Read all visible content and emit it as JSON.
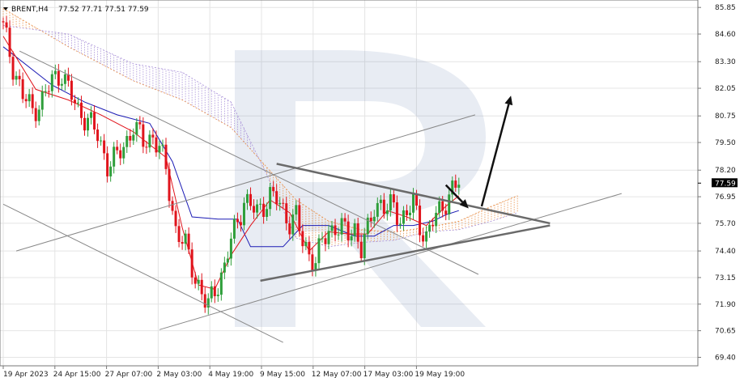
{
  "header": {
    "symbol": "BRENT,H4",
    "ohlc": "77.52 77.71 77.51 77.59",
    "dropdown_icon": "triangle-down-icon"
  },
  "price_tag": {
    "value": "77.59",
    "price": 77.59
  },
  "watermark": {
    "letter": "R",
    "color": "#6e86b4"
  },
  "colors": {
    "bull_candle": "#2e9e3a",
    "bear_candle": "#e0141c",
    "tenkan": "#e0141c",
    "kijun": "#1a1ab4",
    "chikou": "#2e9e3a",
    "cloud_a": "#e8904a",
    "cloud_b": "#a890d8",
    "trendline": "#888888",
    "triangle": "#6a6a6a",
    "forecast_arrow": "#111111"
  },
  "chart_data": {
    "type": "candlestick",
    "symbol": "BRENT",
    "timeframe": "H4",
    "ylim": [
      69.0,
      86.2
    ],
    "y_ticks": [
      "85.85",
      "84.60",
      "83.30",
      "82.05",
      "80.75",
      "79.50",
      "78.20",
      "76.95",
      "75.70",
      "74.40",
      "73.15",
      "71.90",
      "70.65",
      "69.40"
    ],
    "x_ticks": [
      "19 Apr 2023",
      "24 Apr 15:00",
      "27 Apr 07:00",
      "2 May 03:00",
      "4 May 19:00",
      "9 May 15:00",
      "12 May 07:00",
      "17 May 03:00",
      "19 May 19:00"
    ],
    "close_path": [
      [
        0,
        84.9
      ],
      [
        3,
        83.1
      ],
      [
        6,
        81.7
      ],
      [
        9,
        81.0
      ],
      [
        12,
        81.5
      ],
      [
        15,
        82.4
      ],
      [
        18,
        82.8
      ],
      [
        20,
        82.0
      ],
      [
        23,
        81.0
      ],
      [
        26,
        80.6
      ],
      [
        29,
        79.8
      ],
      [
        32,
        78.5
      ],
      [
        35,
        78.8
      ],
      [
        38,
        79.6
      ],
      [
        40,
        80.3
      ],
      [
        43,
        79.5
      ],
      [
        46,
        79.8
      ],
      [
        48,
        79.2
      ],
      [
        50,
        78.2
      ],
      [
        53,
        75.4
      ],
      [
        56,
        74.6
      ],
      [
        59,
        73.2
      ],
      [
        62,
        72.0
      ],
      [
        63,
        71.8
      ],
      [
        65,
        72.6
      ],
      [
        68,
        73.6
      ],
      [
        70,
        74.9
      ],
      [
        72,
        75.8
      ],
      [
        74,
        76.8
      ],
      [
        76,
        76.5
      ],
      [
        78,
        76.2
      ],
      [
        80,
        76.6
      ],
      [
        82,
        77.0
      ],
      [
        84,
        76.8
      ],
      [
        86,
        76.3
      ],
      [
        88,
        75.8
      ],
      [
        90,
        76.0
      ],
      [
        92,
        74.8
      ],
      [
        94,
        74.3
      ],
      [
        96,
        73.9
      ],
      [
        98,
        74.8
      ],
      [
        100,
        75.3
      ],
      [
        102,
        75.6
      ],
      [
        104,
        75.4
      ],
      [
        106,
        75.2
      ],
      [
        108,
        75.5
      ],
      [
        110,
        74.5
      ],
      [
        112,
        75.3
      ],
      [
        114,
        76.5
      ],
      [
        116,
        76.7
      ],
      [
        118,
        76.3
      ],
      [
        120,
        76.5
      ],
      [
        122,
        75.9
      ],
      [
        124,
        76.2
      ],
      [
        126,
        76.6
      ],
      [
        128,
        75.6
      ],
      [
        130,
        75.1
      ],
      [
        132,
        75.8
      ],
      [
        134,
        76.2
      ],
      [
        136,
        76.8
      ],
      [
        138,
        77.3
      ],
      [
        140,
        77.59
      ]
    ],
    "cloud_span_a": [
      [
        0,
        85.8
      ],
      [
        20,
        84.0
      ],
      [
        40,
        82.4
      ],
      [
        55,
        81.5
      ],
      [
        70,
        80.2
      ],
      [
        80,
        78.5
      ],
      [
        90,
        76.8
      ],
      [
        100,
        75.8
      ],
      [
        110,
        75.4
      ],
      [
        120,
        75.3
      ],
      [
        130,
        75.5
      ],
      [
        140,
        75.8
      ],
      [
        150,
        76.5
      ],
      [
        158,
        77.0
      ]
    ],
    "cloud_span_b": [
      [
        0,
        85.0
      ],
      [
        20,
        84.6
      ],
      [
        40,
        83.2
      ],
      [
        55,
        82.8
      ],
      [
        70,
        81.4
      ],
      [
        80,
        78.3
      ],
      [
        90,
        75.0
      ],
      [
        100,
        74.6
      ],
      [
        110,
        74.8
      ],
      [
        120,
        74.9
      ],
      [
        130,
        75.3
      ],
      [
        140,
        75.4
      ],
      [
        150,
        75.8
      ],
      [
        158,
        76.2
      ]
    ],
    "tenkan_sen": [
      [
        0,
        84.5
      ],
      [
        10,
        82.0
      ],
      [
        20,
        81.5
      ],
      [
        30,
        80.8
      ],
      [
        40,
        80.0
      ],
      [
        50,
        78.8
      ],
      [
        55,
        75.5
      ],
      [
        60,
        72.8
      ],
      [
        65,
        72.6
      ],
      [
        70,
        74.2
      ],
      [
        76,
        75.6
      ],
      [
        82,
        76.8
      ],
      [
        88,
        76.2
      ],
      [
        94,
        74.4
      ],
      [
        100,
        75.3
      ],
      [
        106,
        75.2
      ],
      [
        112,
        75.2
      ],
      [
        118,
        76.3
      ],
      [
        124,
        76.0
      ],
      [
        130,
        75.6
      ],
      [
        136,
        76.5
      ],
      [
        140,
        77.0
      ]
    ],
    "kijun_sen": [
      [
        0,
        84.0
      ],
      [
        15,
        82.2
      ],
      [
        25,
        81.4
      ],
      [
        35,
        80.8
      ],
      [
        45,
        80.4
      ],
      [
        52,
        78.6
      ],
      [
        58,
        76.0
      ],
      [
        66,
        75.9
      ],
      [
        72,
        75.9
      ],
      [
        76,
        74.6
      ],
      [
        86,
        74.6
      ],
      [
        92,
        75.6
      ],
      [
        100,
        75.6
      ],
      [
        108,
        75.1
      ],
      [
        114,
        75.1
      ],
      [
        120,
        75.6
      ],
      [
        126,
        75.6
      ],
      [
        132,
        75.8
      ],
      [
        136,
        76.1
      ],
      [
        140,
        76.3
      ]
    ],
    "trendlines": [
      {
        "from": [
          5,
          83.8
        ],
        "to": [
          146,
          73.3
        ]
      },
      {
        "from": [
          0,
          76.6
        ],
        "to": [
          86,
          70.1
        ]
      },
      {
        "from": [
          4,
          74.4
        ],
        "to": [
          145,
          80.8
        ]
      },
      {
        "from": [
          48,
          70.7
        ],
        "to": [
          190,
          77.1
        ]
      }
    ],
    "triangle": {
      "upper": {
        "from": [
          84,
          78.5
        ],
        "to": [
          168,
          75.7
        ]
      },
      "lower": {
        "from": [
          79,
          73.0
        ],
        "to": [
          168,
          75.6
        ]
      }
    },
    "forecast_arrows": [
      {
        "from": [
          136,
          77.5
        ],
        "to": [
          143,
          76.4
        ]
      },
      {
        "from": [
          147,
          76.5
        ],
        "to": [
          156,
          81.7
        ]
      }
    ]
  }
}
